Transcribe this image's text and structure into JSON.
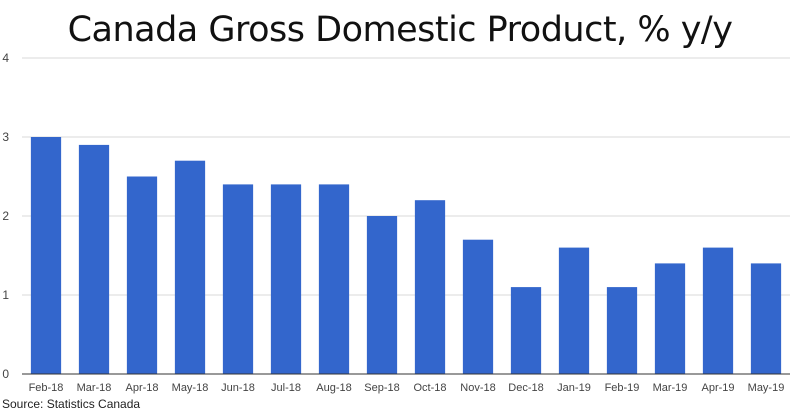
{
  "title": "Canada Gross Domestic Product, % y/y",
  "source": "Source: Statistics Canada",
  "colors": {
    "bar": "#3366cc",
    "grid": "#d9d9d9",
    "axis": "#333333"
  },
  "chart_data": {
    "type": "bar",
    "title": "Canada Gross Domestic Product, % y/y",
    "xlabel": "",
    "ylabel": "",
    "ylim": [
      0,
      4
    ],
    "yticks": [
      "0",
      "1",
      "2",
      "3",
      "4"
    ],
    "grid": true,
    "legend": "none",
    "categories": [
      "Feb-18",
      "Mar-18",
      "Apr-18",
      "May-18",
      "Jun-18",
      "Jul-18",
      "Aug-18",
      "Sep-18",
      "Oct-18",
      "Nov-18",
      "Dec-18",
      "Jan-19",
      "Feb-19",
      "Mar-19",
      "Apr-19",
      "May-19"
    ],
    "values": [
      3.0,
      2.9,
      2.5,
      2.7,
      2.4,
      2.4,
      2.4,
      2.0,
      2.2,
      1.7,
      1.1,
      1.6,
      1.1,
      1.4,
      1.6,
      1.4
    ]
  }
}
